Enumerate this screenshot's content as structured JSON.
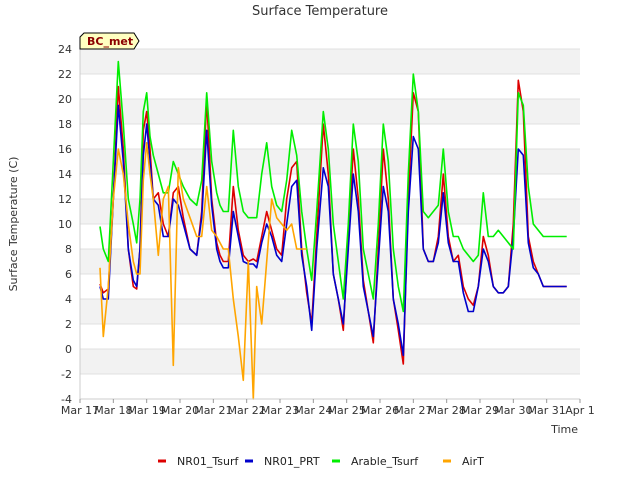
{
  "chart_data": {
    "type": "line",
    "title": "Surface Temperature",
    "xlabel": "Time",
    "ylabel": "Surface Temperature (C)",
    "badge": "BC_met",
    "ylim": [
      -4,
      24
    ],
    "yticks": [
      -4,
      -2,
      0,
      2,
      4,
      6,
      8,
      10,
      12,
      14,
      16,
      18,
      20,
      22,
      24
    ],
    "xlim": [
      0,
      15
    ],
    "xtick_labels": [
      "Mar 17",
      "Mar 18",
      "Mar 19",
      "Mar 20",
      "Mar 21",
      "Mar 22",
      "Mar 23",
      "Mar 24",
      "Mar 25",
      "Mar 26",
      "Mar 27",
      "Mar 28",
      "Mar 29",
      "Mar 30",
      "Mar 31",
      "Apr 1"
    ],
    "grid": "horizontal bands",
    "legend_position": "bottom",
    "colors": {
      "NR01_Tsurf": "#dd0000",
      "NR01_PRT": "#0000cc",
      "Arable_Tsurf": "#00ee00",
      "AirT": "#ffa500"
    },
    "series": [
      {
        "name": "NR01_Tsurf",
        "x": [
          0.6,
          0.7,
          0.85,
          1.0,
          1.15,
          1.3,
          1.45,
          1.6,
          1.7,
          1.8,
          1.9,
          2.0,
          2.1,
          2.2,
          2.35,
          2.5,
          2.65,
          2.8,
          2.95,
          3.1,
          3.3,
          3.5,
          3.65,
          3.8,
          3.95,
          4.1,
          4.2,
          4.3,
          4.45,
          4.6,
          4.75,
          4.9,
          5.05,
          5.2,
          5.3,
          5.45,
          5.6,
          5.75,
          5.9,
          6.05,
          6.2,
          6.35,
          6.5,
          6.65,
          6.8,
          6.95,
          7.1,
          7.3,
          7.45,
          7.6,
          7.75,
          7.9,
          8.05,
          8.2,
          8.35,
          8.5,
          8.65,
          8.8,
          8.95,
          9.1,
          9.25,
          9.4,
          9.55,
          9.7,
          9.85,
          10.0,
          10.15,
          10.3,
          10.45,
          10.6,
          10.75,
          10.9,
          11.05,
          11.2,
          11.35,
          11.5,
          11.65,
          11.8,
          11.95,
          12.1,
          12.25,
          12.4,
          12.55,
          12.7,
          12.85,
          13.0,
          13.15,
          13.3,
          13.45,
          13.6,
          13.75,
          13.9,
          14.05,
          14.2,
          14.35,
          14.5,
          14.6
        ],
        "y": [
          5.2,
          4.5,
          4.8,
          12.0,
          21.0,
          16.0,
          8.0,
          5.0,
          4.8,
          8.0,
          17.5,
          19.0,
          16.0,
          12.0,
          12.5,
          10.0,
          9.0,
          12.5,
          13.0,
          10.5,
          8.0,
          7.5,
          11.0,
          20.0,
          12.0,
          8.5,
          7.5,
          7.0,
          7.0,
          13.0,
          9.5,
          7.5,
          7.0,
          7.2,
          7.0,
          9.0,
          11.0,
          9.5,
          8.0,
          7.5,
          12.0,
          14.5,
          15.0,
          8.0,
          4.5,
          2.0,
          9.0,
          18.0,
          14.0,
          6.0,
          4.0,
          1.5,
          9.0,
          16.0,
          12.0,
          5.5,
          3.0,
          0.5,
          8.0,
          16.0,
          12.0,
          4.0,
          1.5,
          -1.2,
          12.0,
          20.5,
          19.0,
          8.0,
          7.0,
          7.0,
          9.0,
          14.0,
          9.0,
          7.0,
          7.5,
          5.0,
          4.0,
          3.5,
          5.0,
          9.0,
          7.5,
          5.0,
          4.5,
          4.5,
          5.0,
          10.0,
          21.5,
          19.0,
          9.0,
          7.0,
          6.0,
          5.0,
          5.0,
          5.0,
          5.0,
          5.0,
          5.0
        ]
      },
      {
        "name": "NR01_PRT",
        "x": [
          0.6,
          0.7,
          0.85,
          1.0,
          1.15,
          1.3,
          1.45,
          1.6,
          1.7,
          1.8,
          1.9,
          2.0,
          2.1,
          2.2,
          2.35,
          2.5,
          2.65,
          2.8,
          2.95,
          3.1,
          3.3,
          3.5,
          3.65,
          3.8,
          3.95,
          4.1,
          4.2,
          4.3,
          4.45,
          4.6,
          4.75,
          4.9,
          5.05,
          5.2,
          5.3,
          5.45,
          5.6,
          5.75,
          5.9,
          6.05,
          6.2,
          6.35,
          6.5,
          6.65,
          6.8,
          6.95,
          7.1,
          7.3,
          7.45,
          7.6,
          7.75,
          7.9,
          8.05,
          8.2,
          8.35,
          8.5,
          8.65,
          8.8,
          8.95,
          9.1,
          9.25,
          9.4,
          9.55,
          9.7,
          9.85,
          10.0,
          10.15,
          10.3,
          10.45,
          10.6,
          10.75,
          10.9,
          11.05,
          11.2,
          11.35,
          11.5,
          11.65,
          11.8,
          11.95,
          12.1,
          12.25,
          12.4,
          12.55,
          12.7,
          12.85,
          13.0,
          13.15,
          13.3,
          13.45,
          13.6,
          13.75,
          13.9,
          14.05,
          14.2,
          14.35,
          14.5,
          14.6
        ],
        "y": [
          5.0,
          4.0,
          4.0,
          12.0,
          19.5,
          15.0,
          8.0,
          5.5,
          5.0,
          8.0,
          15.5,
          18.0,
          15.0,
          12.0,
          11.5,
          9.0,
          9.0,
          12.0,
          11.5,
          10.0,
          8.0,
          7.5,
          10.5,
          17.5,
          11.5,
          8.0,
          7.0,
          6.5,
          6.5,
          11.0,
          9.0,
          7.0,
          6.8,
          6.8,
          6.5,
          8.5,
          10.0,
          9.0,
          7.5,
          7.0,
          10.0,
          13.0,
          13.5,
          7.5,
          5.0,
          1.5,
          8.0,
          14.5,
          13.0,
          6.0,
          4.0,
          2.0,
          8.0,
          14.0,
          11.0,
          5.0,
          3.0,
          1.0,
          7.0,
          13.0,
          11.0,
          4.0,
          2.0,
          -0.5,
          11.0,
          17.0,
          16.0,
          8.0,
          7.0,
          7.0,
          8.5,
          12.5,
          8.5,
          7.0,
          7.0,
          4.5,
          3.0,
          3.0,
          5.0,
          8.0,
          7.0,
          5.0,
          4.5,
          4.5,
          5.0,
          9.0,
          16.0,
          15.5,
          8.5,
          6.5,
          6.0,
          5.0,
          5.0,
          5.0,
          5.0,
          5.0,
          5.0
        ]
      },
      {
        "name": "Arable_Tsurf",
        "x": [
          0.6,
          0.7,
          0.85,
          1.0,
          1.15,
          1.3,
          1.45,
          1.6,
          1.7,
          1.8,
          1.9,
          2.0,
          2.1,
          2.2,
          2.35,
          2.5,
          2.65,
          2.8,
          2.95,
          3.1,
          3.3,
          3.5,
          3.65,
          3.8,
          3.95,
          4.1,
          4.2,
          4.3,
          4.45,
          4.6,
          4.75,
          4.9,
          5.05,
          5.2,
          5.3,
          5.45,
          5.6,
          5.75,
          5.9,
          6.05,
          6.2,
          6.35,
          6.5,
          6.65,
          6.8,
          6.95,
          7.1,
          7.3,
          7.45,
          7.6,
          7.75,
          7.9,
          8.05,
          8.2,
          8.35,
          8.5,
          8.65,
          8.8,
          8.95,
          9.1,
          9.25,
          9.4,
          9.55,
          9.7,
          9.85,
          10.0,
          10.15,
          10.3,
          10.45,
          10.6,
          10.75,
          10.9,
          11.05,
          11.2,
          11.35,
          11.5,
          11.65,
          11.8,
          11.95,
          12.1,
          12.25,
          12.4,
          12.55,
          12.7,
          12.85,
          13.0,
          13.15,
          13.3,
          13.45,
          13.6,
          13.75,
          13.9,
          14.05,
          14.2,
          14.35,
          14.5,
          14.6
        ],
        "y": [
          9.8,
          8.0,
          7.0,
          15.0,
          23.0,
          18.0,
          12.0,
          10.0,
          8.5,
          12.0,
          19.0,
          20.5,
          17.0,
          15.5,
          14.0,
          12.5,
          12.5,
          15.0,
          14.0,
          13.0,
          12.0,
          11.5,
          13.5,
          20.5,
          15.0,
          12.5,
          11.5,
          11.0,
          11.0,
          17.5,
          13.0,
          11.0,
          10.5,
          10.5,
          10.5,
          14.0,
          16.5,
          13.0,
          11.5,
          11.0,
          13.5,
          17.5,
          15.5,
          11.0,
          8.0,
          5.5,
          11.0,
          19.0,
          16.0,
          10.0,
          7.0,
          4.0,
          10.0,
          18.0,
          15.0,
          8.0,
          6.0,
          4.0,
          10.0,
          18.0,
          15.0,
          8.0,
          5.0,
          3.0,
          14.0,
          22.0,
          19.0,
          11.0,
          10.5,
          11.0,
          11.5,
          16.0,
          11.0,
          9.0,
          9.0,
          8.0,
          7.5,
          7.0,
          7.5,
          12.5,
          9.0,
          9.0,
          9.5,
          9.0,
          8.5,
          8.0,
          20.5,
          19.5,
          13.0,
          10.0,
          9.5,
          9.0,
          9.0,
          9.0,
          9.0,
          9.0,
          9.0
        ]
      },
      {
        "name": "AirT",
        "x": [
          0.6,
          0.7,
          0.85,
          1.0,
          1.15,
          1.3,
          1.45,
          1.6,
          1.7,
          1.8,
          1.9,
          2.0,
          2.1,
          2.2,
          2.35,
          2.5,
          2.65,
          2.8,
          2.95,
          3.1,
          3.3,
          3.5,
          3.65,
          3.8,
          3.95,
          4.1,
          4.2,
          4.3,
          4.45,
          4.6,
          4.75,
          4.9,
          5.05,
          5.2,
          5.3,
          5.45,
          5.6,
          5.75,
          5.9,
          6.05,
          6.2,
          6.35,
          6.5,
          6.65,
          6.8
        ],
        "y": [
          6.5,
          1.0,
          5.0,
          12.0,
          16.0,
          14.0,
          10.0,
          7.0,
          6.0,
          6.0,
          13.5,
          16.5,
          14.0,
          12.0,
          7.5,
          12.0,
          13.0,
          -1.3,
          14.5,
          12.0,
          10.5,
          9.0,
          9.0,
          13.0,
          9.5,
          9.0,
          8.5,
          8.0,
          8.0,
          4.0,
          1.0,
          -2.5,
          7.0,
          -4.0,
          5.0,
          2.0,
          7.0,
          12.0,
          10.5,
          10.0,
          9.5,
          10.0,
          8.0,
          8.0,
          8.0
        ]
      }
    ]
  }
}
